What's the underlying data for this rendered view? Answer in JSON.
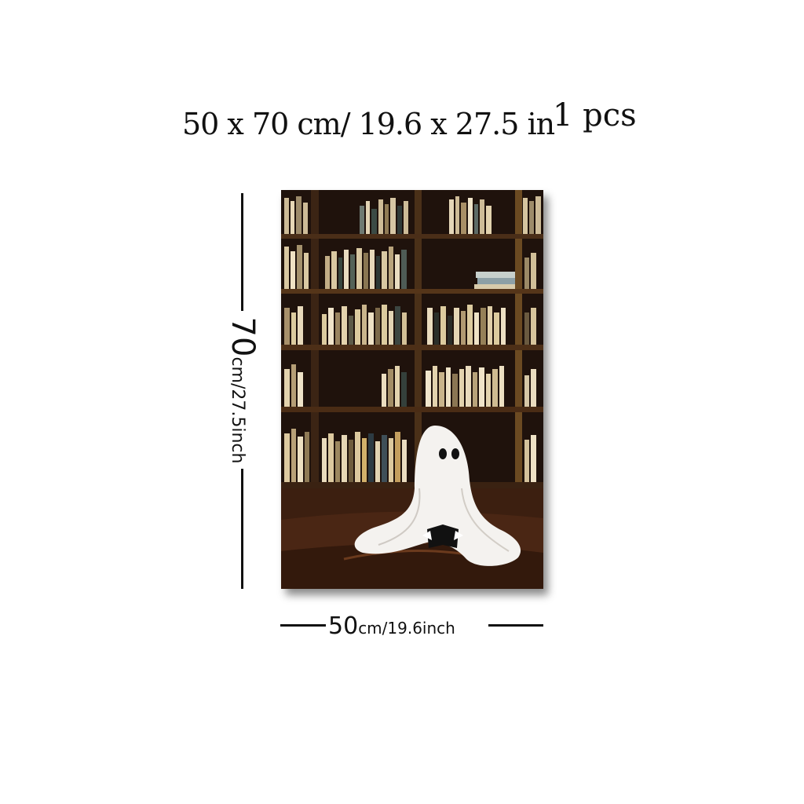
{
  "title": {
    "dimensions": "50 x 70 cm/ 19.6 x 27.5 in",
    "quantity": "1 pcs"
  },
  "height_label": {
    "value": "70",
    "unit": "cm/27.5inch"
  },
  "width_label": {
    "value": "50",
    "unit": "cm/19.6inch"
  }
}
